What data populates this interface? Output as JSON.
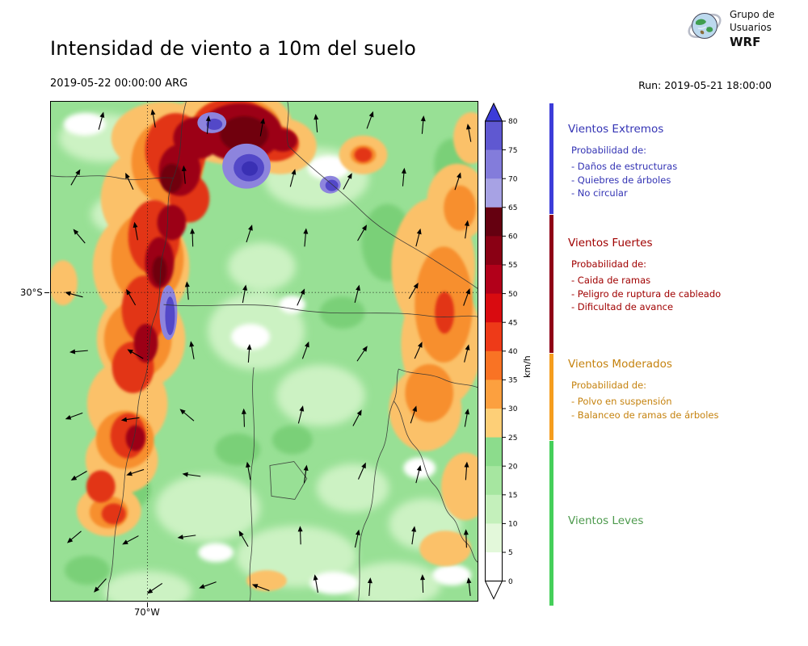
{
  "header": {
    "title": "Intensidad de viento a 10m del suelo",
    "datetime": "2019-05-22 00:00:00 ARG",
    "run_label": "Run: 2019-05-21 18:00:00",
    "logo": {
      "line1": "Grupo de",
      "line2": "Usuarios",
      "line3": "WRF"
    }
  },
  "map": {
    "lat_label": "30°S",
    "lon_label": "70°W"
  },
  "colorbar": {
    "unit": "km/h",
    "tick_labels": [
      "80",
      "75",
      "70",
      "65",
      "60",
      "55",
      "50",
      "45",
      "40",
      "35",
      "30",
      "25",
      "20",
      "15",
      "10",
      "5",
      "0"
    ],
    "palette_top_to_bottom": [
      "#5f58d1",
      "#837cdb",
      "#a7a2e4",
      "#650010",
      "#8a0014",
      "#b2001a",
      "#d90b10",
      "#ee3a18",
      "#f97324",
      "#fca03f",
      "#fdcf77",
      "#8cdc8c",
      "#a6e6a0",
      "#c4f0bb",
      "#e3f8da",
      "#ffffff"
    ],
    "arrow_top_color": "#3c3cd9",
    "arrow_bottom_color": "#ffffff"
  },
  "legend": {
    "sections": [
      {
        "title": "Vientos Extremos",
        "color": "#3333b4",
        "bar_color": "#3c3cd9",
        "subtitle": "Probabilidad de:",
        "items": [
          "- Daños de estructuras",
          "- Quiebres de árboles",
          "- No circular"
        ]
      },
      {
        "title": "Vientos Fuertes",
        "color": "#a00000",
        "bar_color": "#8f0016",
        "subtitle": "Probabilidad de:",
        "items": [
          "- Caida de ramas",
          "- Peligro de ruptura de cableado",
          "- Dificultad de avance"
        ]
      },
      {
        "title": "Vientos Moderados",
        "color": "#c5820e",
        "bar_color": "#f59d1e",
        "subtitle": "Probabilidad de:",
        "items": [
          "- Polvo en suspensión",
          "- Balanceo de ramas de árboles"
        ]
      },
      {
        "title": "Vientos Leves",
        "color": "#4d9a4d",
        "bar_color": "#45cf5a",
        "subtitle": "",
        "items": []
      }
    ]
  }
}
